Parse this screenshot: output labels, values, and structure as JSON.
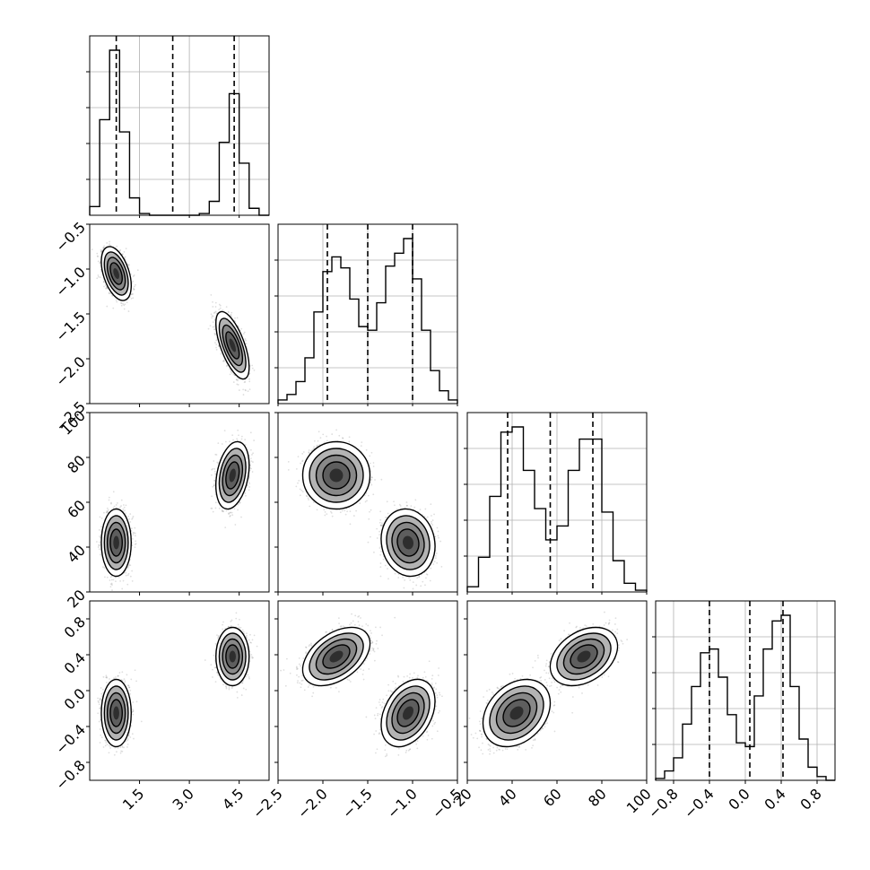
{
  "chart_data": {
    "type": "corner",
    "grid": true,
    "params": [
      {
        "range": [
          0,
          5.4
        ],
        "ticks": [
          1.5,
          3.0,
          4.5
        ],
        "tick_labels": [
          "1.5",
          "3.0",
          "4.5"
        ]
      },
      {
        "range": [
          -2.5,
          -0.5
        ],
        "ticks": [
          -2.5,
          -2.0,
          -1.5,
          -1.0,
          -0.5
        ],
        "tick_labels": [
          "−2.5",
          "−2.0",
          "−1.5",
          "−1.0",
          "−0.5"
        ]
      },
      {
        "range": [
          20,
          100
        ],
        "ticks": [
          20,
          40,
          60,
          80,
          100
        ],
        "tick_labels": [
          "20",
          "40",
          "60",
          "80",
          "100"
        ]
      },
      {
        "range": [
          -1.0,
          1.0
        ],
        "ticks": [
          -0.8,
          -0.4,
          0.0,
          0.4,
          0.8
        ],
        "tick_labels": [
          "−0.8",
          "−0.4",
          "0.0",
          "0.4",
          "0.8"
        ]
      }
    ],
    "diagonal_row_tick_labels": [
      [],
      [
        "−0.5",
        "−1.0",
        "−1.5",
        "−2.0",
        "−2.5"
      ],
      [
        "100",
        "80",
        "60",
        "40",
        "20"
      ],
      [
        "0.8",
        "0.4",
        "0.0",
        "−0.4",
        "−0.8"
      ]
    ],
    "histograms": [
      {
        "bin_centers": [
          0.15,
          0.45,
          0.75,
          1.05,
          1.35,
          1.65,
          1.95,
          2.25,
          2.55,
          2.85,
          3.15,
          3.45,
          3.75,
          4.05,
          4.35,
          4.65,
          4.95,
          5.25
        ],
        "counts": [
          0.05,
          0.55,
          0.95,
          0.48,
          0.1,
          0.01,
          0,
          0,
          0,
          0,
          0,
          0.01,
          0.08,
          0.42,
          0.7,
          0.3,
          0.04,
          0
        ]
      },
      {
        "bin_centers": [
          -2.45,
          -2.35,
          -2.25,
          -2.15,
          -2.05,
          -1.95,
          -1.85,
          -1.75,
          -1.65,
          -1.55,
          -1.45,
          -1.35,
          -1.25,
          -1.15,
          -1.05,
          -0.95,
          -0.85,
          -0.75,
          -0.65,
          -0.55
        ],
        "counts": [
          0.02,
          0.05,
          0.12,
          0.25,
          0.5,
          0.72,
          0.8,
          0.74,
          0.57,
          0.42,
          0.4,
          0.55,
          0.75,
          0.82,
          0.9,
          0.68,
          0.4,
          0.18,
          0.07,
          0.02
        ]
      },
      {
        "bin_centers": [
          22.5,
          27.5,
          32.5,
          37.5,
          42.5,
          47.5,
          52.5,
          57.5,
          62.5,
          67.5,
          72.5,
          77.5,
          82.5,
          87.5,
          92.5,
          97.5
        ],
        "counts": [
          0.03,
          0.2,
          0.55,
          0.92,
          0.95,
          0.7,
          0.48,
          0.3,
          0.38,
          0.7,
          0.88,
          0.88,
          0.46,
          0.18,
          0.05,
          0.01
        ]
      },
      {
        "bin_centers": [
          -0.95,
          -0.85,
          -0.75,
          -0.65,
          -0.55,
          -0.45,
          -0.35,
          -0.25,
          -0.15,
          -0.05,
          0.05,
          0.15,
          0.25,
          0.35,
          0.45,
          0.55,
          0.65,
          0.75,
          0.85,
          0.95
        ],
        "counts": [
          0.01,
          0.05,
          0.12,
          0.3,
          0.5,
          0.68,
          0.7,
          0.55,
          0.35,
          0.2,
          0.18,
          0.45,
          0.7,
          0.85,
          0.88,
          0.5,
          0.22,
          0.07,
          0.02,
          0
        ]
      }
    ],
    "quantiles": [
      [
        0.8,
        2.5,
        4.35
      ],
      [
        -1.95,
        -1.5,
        -1.0
      ],
      [
        38,
        57,
        76
      ],
      [
        -0.4,
        0.05,
        0.42
      ]
    ],
    "clusters": [
      {
        "center": [
          0.8,
          -1.05,
          42,
          -0.25
        ],
        "sd": [
          0.18,
          0.12,
          6,
          0.15
        ]
      },
      {
        "center": [
          4.3,
          -1.85,
          72,
          0.38
        ],
        "sd": [
          0.2,
          0.15,
          6,
          0.13
        ]
      }
    ],
    "correlations": {
      "0-1": [
        -0.45,
        -0.65
      ],
      "0-2": [
        0,
        0.3
      ],
      "0-3": [
        0,
        0
      ],
      "1-2": [
        -0.1,
        0
      ],
      "1-3": [
        0.35,
        0.45
      ],
      "2-3": [
        0.3,
        0.35
      ]
    }
  }
}
